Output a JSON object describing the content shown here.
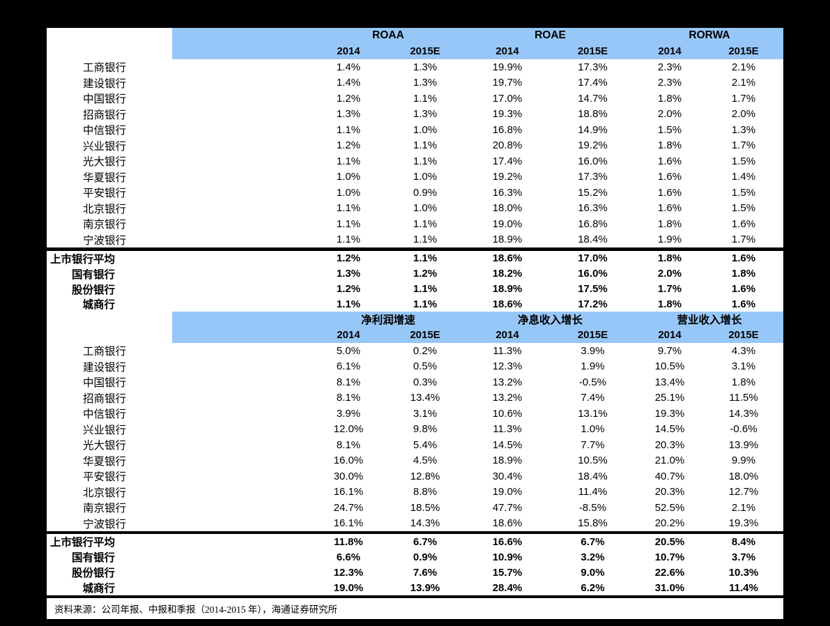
{
  "colors": {
    "background": "#000000",
    "paper": "#ffffff",
    "header_blue": "#97C7F8",
    "text": "#000000"
  },
  "table1": {
    "groups": [
      "ROAA",
      "ROAE",
      "RORWA"
    ],
    "years": [
      "2014",
      "2015E",
      "2014",
      "2015E",
      "2014",
      "2015E"
    ],
    "rows": [
      {
        "label": "工商银行",
        "values": [
          "1.4%",
          "1.3%",
          "19.9%",
          "17.3%",
          "2.3%",
          "2.1%"
        ]
      },
      {
        "label": "建设银行",
        "values": [
          "1.4%",
          "1.3%",
          "19.7%",
          "17.4%",
          "2.3%",
          "2.1%"
        ]
      },
      {
        "label": "中国银行",
        "values": [
          "1.2%",
          "1.1%",
          "17.0%",
          "14.7%",
          "1.8%",
          "1.7%"
        ]
      },
      {
        "label": "招商银行",
        "values": [
          "1.3%",
          "1.3%",
          "19.3%",
          "18.8%",
          "2.0%",
          "2.0%"
        ]
      },
      {
        "label": "中信银行",
        "values": [
          "1.1%",
          "1.0%",
          "16.8%",
          "14.9%",
          "1.5%",
          "1.3%"
        ]
      },
      {
        "label": "兴业银行",
        "values": [
          "1.2%",
          "1.1%",
          "20.8%",
          "19.2%",
          "1.8%",
          "1.7%"
        ]
      },
      {
        "label": "光大银行",
        "values": [
          "1.1%",
          "1.1%",
          "17.4%",
          "16.0%",
          "1.6%",
          "1.5%"
        ]
      },
      {
        "label": "华夏银行",
        "values": [
          "1.0%",
          "1.0%",
          "19.2%",
          "17.3%",
          "1.6%",
          "1.4%"
        ]
      },
      {
        "label": "平安银行",
        "values": [
          "1.0%",
          "0.9%",
          "16.3%",
          "15.2%",
          "1.6%",
          "1.5%"
        ]
      },
      {
        "label": "北京银行",
        "values": [
          "1.1%",
          "1.0%",
          "18.0%",
          "16.3%",
          "1.6%",
          "1.5%"
        ]
      },
      {
        "label": "南京银行",
        "values": [
          "1.1%",
          "1.1%",
          "19.0%",
          "16.8%",
          "1.8%",
          "1.6%"
        ]
      },
      {
        "label": "宁波银行",
        "values": [
          "1.1%",
          "1.1%",
          "18.9%",
          "18.4%",
          "1.9%",
          "1.7%"
        ]
      }
    ],
    "summary": [
      {
        "label": "上市银行平均",
        "values": [
          "1.2%",
          "1.1%",
          "18.6%",
          "17.0%",
          "1.8%",
          "1.6%"
        ]
      },
      {
        "label": "国有银行",
        "values": [
          "1.3%",
          "1.2%",
          "18.2%",
          "16.0%",
          "2.0%",
          "1.8%"
        ]
      },
      {
        "label": "股份银行",
        "values": [
          "1.2%",
          "1.1%",
          "18.9%",
          "17.5%",
          "1.7%",
          "1.6%"
        ]
      },
      {
        "label": "城商行",
        "values": [
          "1.1%",
          "1.1%",
          "18.6%",
          "17.2%",
          "1.8%",
          "1.6%"
        ]
      }
    ]
  },
  "table2": {
    "groups": [
      "净利润增速",
      "净息收入增长",
      "营业收入增长"
    ],
    "years": [
      "2014",
      "2015E",
      "2014",
      "2015E",
      "2014",
      "2015E"
    ],
    "rows": [
      {
        "label": "工商银行",
        "values": [
          "5.0%",
          "0.2%",
          "11.3%",
          "3.9%",
          "9.7%",
          "4.3%"
        ]
      },
      {
        "label": "建设银行",
        "values": [
          "6.1%",
          "0.5%",
          "12.3%",
          "1.9%",
          "10.5%",
          "3.1%"
        ]
      },
      {
        "label": "中国银行",
        "values": [
          "8.1%",
          "0.3%",
          "13.2%",
          "-0.5%",
          "13.4%",
          "1.8%"
        ]
      },
      {
        "label": "招商银行",
        "values": [
          "8.1%",
          "13.4%",
          "13.2%",
          "7.4%",
          "25.1%",
          "11.5%"
        ]
      },
      {
        "label": "中信银行",
        "values": [
          "3.9%",
          "3.1%",
          "10.6%",
          "13.1%",
          "19.3%",
          "14.3%"
        ]
      },
      {
        "label": "兴业银行",
        "values": [
          "12.0%",
          "9.8%",
          "11.3%",
          "1.0%",
          "14.5%",
          "-0.6%"
        ]
      },
      {
        "label": "光大银行",
        "values": [
          "8.1%",
          "5.4%",
          "14.5%",
          "7.7%",
          "20.3%",
          "13.9%"
        ]
      },
      {
        "label": "华夏银行",
        "values": [
          "16.0%",
          "4.5%",
          "18.9%",
          "10.5%",
          "21.0%",
          "9.9%"
        ]
      },
      {
        "label": "平安银行",
        "values": [
          "30.0%",
          "12.8%",
          "30.4%",
          "18.4%",
          "40.7%",
          "18.0%"
        ]
      },
      {
        "label": "北京银行",
        "values": [
          "16.1%",
          "8.8%",
          "19.0%",
          "11.4%",
          "20.3%",
          "12.7%"
        ]
      },
      {
        "label": "南京银行",
        "values": [
          "24.7%",
          "18.5%",
          "47.7%",
          "-8.5%",
          "52.5%",
          "2.1%"
        ]
      },
      {
        "label": "宁波银行",
        "values": [
          "16.1%",
          "14.3%",
          "18.6%",
          "15.8%",
          "20.2%",
          "19.3%"
        ]
      }
    ],
    "summary": [
      {
        "label": "上市银行平均",
        "values": [
          "11.8%",
          "6.7%",
          "16.6%",
          "6.7%",
          "20.5%",
          "8.4%"
        ]
      },
      {
        "label": "国有银行",
        "values": [
          "6.6%",
          "0.9%",
          "10.9%",
          "3.2%",
          "10.7%",
          "3.7%"
        ]
      },
      {
        "label": "股份银行",
        "values": [
          "12.3%",
          "7.6%",
          "15.7%",
          "9.0%",
          "22.6%",
          "10.3%"
        ]
      },
      {
        "label": "城商行",
        "values": [
          "19.0%",
          "13.9%",
          "28.4%",
          "6.2%",
          "31.0%",
          "11.4%"
        ]
      }
    ]
  },
  "footer": {
    "source": "资料来源：公司年报、中报和季报（2014-2015 年），海通证券研究所"
  }
}
